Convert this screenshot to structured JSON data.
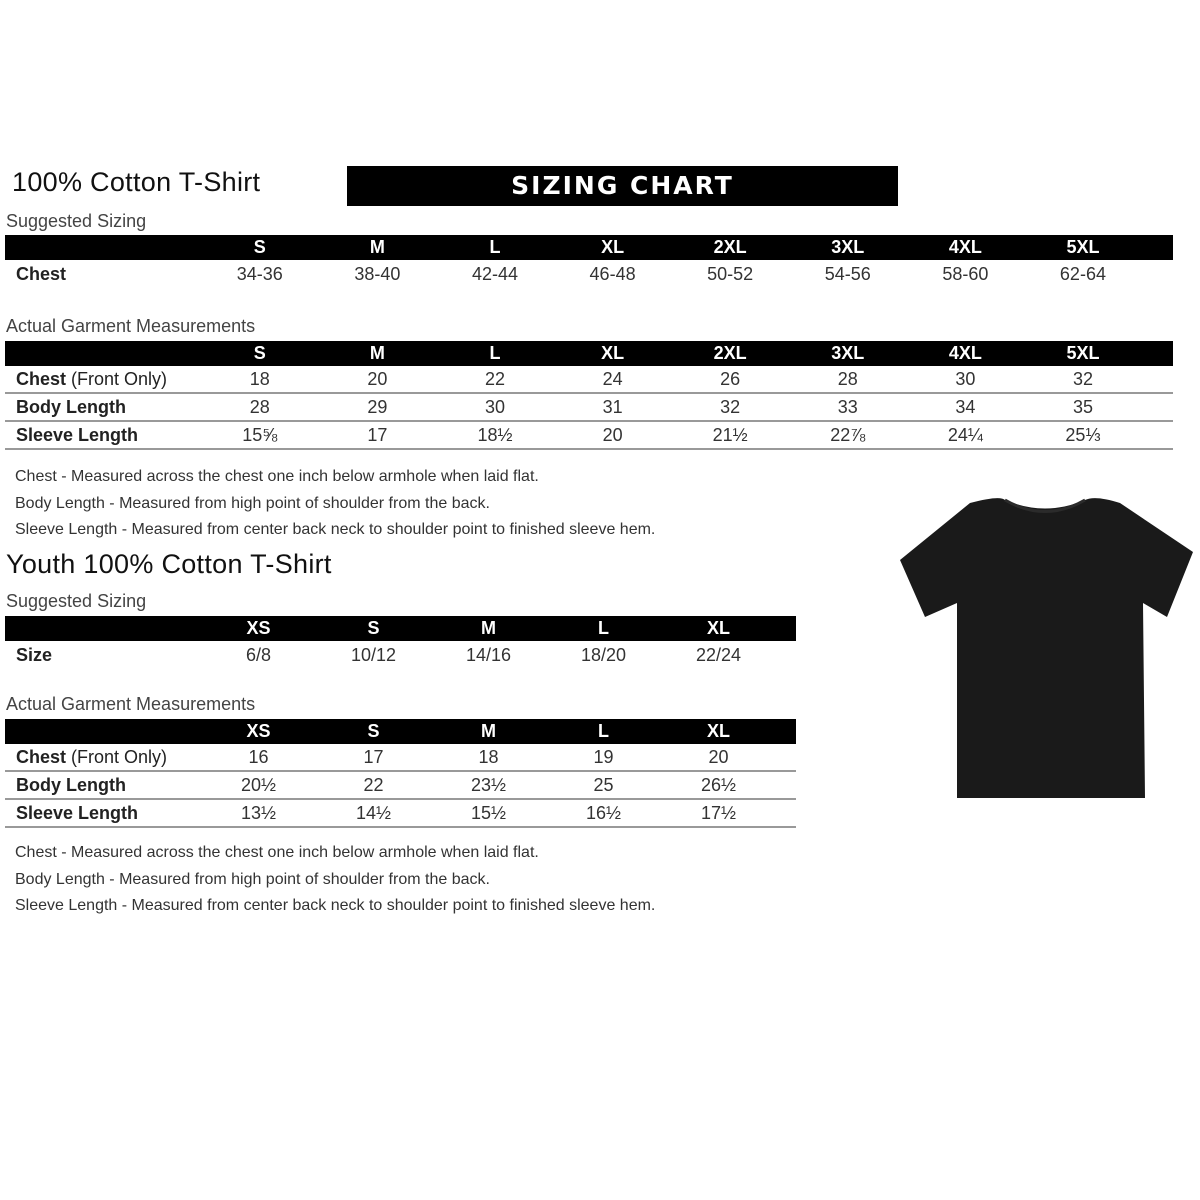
{
  "banner": "SIZING CHART",
  "adult": {
    "title": "100% Cotton T-Shirt",
    "suggested_label": "Suggested Sizing",
    "sizes": [
      "S",
      "M",
      "L",
      "XL",
      "2XL",
      "3XL",
      "4XL",
      "5XL"
    ],
    "suggested_rows": [
      {
        "label": "Chest",
        "values": [
          "34-36",
          "38-40",
          "42-44",
          "46-48",
          "50-52",
          "54-56",
          "58-60",
          "62-64"
        ]
      }
    ],
    "actual_label": "Actual Garment Measurements",
    "actual_rows": [
      {
        "label": "Chest",
        "label_suffix": " (Front Only)",
        "values": [
          "18",
          "20",
          "22",
          "24",
          "26",
          "28",
          "30",
          "32"
        ]
      },
      {
        "label": "Body Length",
        "label_suffix": "",
        "values": [
          "28",
          "29",
          "30",
          "31",
          "32",
          "33",
          "34",
          "35"
        ]
      },
      {
        "label": "Sleeve Length",
        "label_suffix": "",
        "values": [
          "15⅝",
          "17",
          "18½",
          "20",
          "21½",
          "22⅞",
          "24¼",
          "25⅓"
        ]
      }
    ],
    "notes": [
      "Chest - Measured across the chest one inch below armhole when laid flat.",
      "Body Length - Measured from high point of shoulder from the back.",
      "Sleeve Length - Measured from center back neck to shoulder point to finished sleeve hem."
    ]
  },
  "youth": {
    "title": "Youth 100% Cotton T-Shirt",
    "suggested_label": "Suggested Sizing",
    "sizes": [
      "XS",
      "S",
      "M",
      "L",
      "XL"
    ],
    "suggested_rows": [
      {
        "label": "Size",
        "values": [
          "6/8",
          "10/12",
          "14/16",
          "18/20",
          "22/24"
        ]
      }
    ],
    "actual_label": "Actual Garment Measurements",
    "actual_rows": [
      {
        "label": "Chest",
        "label_suffix": " (Front Only)",
        "values": [
          "16",
          "17",
          "18",
          "19",
          "20"
        ]
      },
      {
        "label": "Body Length",
        "label_suffix": "",
        "values": [
          "20½",
          "22",
          "23½",
          "25",
          "26½"
        ]
      },
      {
        "label": "Sleeve Length",
        "label_suffix": "",
        "values": [
          "13½",
          "14½",
          "15½",
          "16½",
          "17½"
        ]
      }
    ],
    "notes": [
      "Chest - Measured across the chest one inch below armhole when laid flat.",
      "Body Length - Measured from high point of shoulder from the back.",
      "Sleeve Length - Measured from center back neck to shoulder point to finished sleeve hem."
    ]
  },
  "colors": {
    "header": "#000000",
    "shirt": "#1a1a1a"
  }
}
